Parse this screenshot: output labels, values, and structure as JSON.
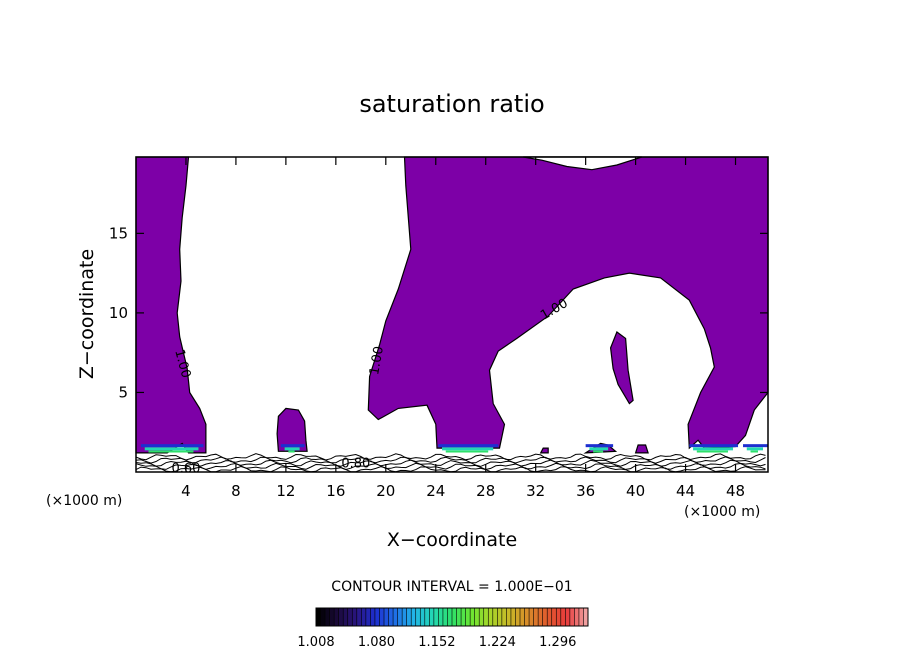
{
  "chart_data": {
    "type": "heatmap",
    "title": "saturation ratio",
    "xlabel": "X−coordinate",
    "ylabel": "Z−coordinate",
    "x_unit": "(×1000 m)",
    "z_unit": "(×1000 m)",
    "xlim": [
      0,
      50.6
    ],
    "ylim": [
      0,
      19.8
    ],
    "x_ticks": [
      4,
      8,
      12,
      16,
      20,
      24,
      28,
      32,
      36,
      40,
      44,
      48
    ],
    "y_ticks": [
      5,
      10,
      15
    ],
    "contour_interval": "CONTOUR INTERVAL = 1.000E−01",
    "contour_labels": [
      {
        "text": "1.00",
        "x": 3.7,
        "z": 6.8,
        "rot": 75
      },
      {
        "text": "1.00",
        "x": 19.3,
        "z": 7.0,
        "rot": -80
      },
      {
        "text": "1.00",
        "x": 33.5,
        "z": 10.2,
        "rot": -30
      },
      {
        "text": "0.60",
        "x": 4.0,
        "z": 0.2,
        "rot": 0
      },
      {
        "text": "0.80",
        "x": 17.6,
        "z": 0.5,
        "rot": 0
      }
    ],
    "colorbar": {
      "min": 1.008,
      "max": 1.332,
      "tick_labels": [
        "1.008",
        "1.080",
        "1.152",
        "1.224",
        "1.296"
      ],
      "colors": [
        "#000000",
        "#1a0a3a",
        "#2a1580",
        "#1d2fd0",
        "#1f6ee6",
        "#22b4e8",
        "#23d7b3",
        "#2ee06a",
        "#6be632",
        "#a8d62a",
        "#c9b828",
        "#d98a2a",
        "#e05a2e",
        "#e83b3b",
        "#f0a0a0"
      ]
    },
    "supersaturated_color": "#7d00a7",
    "cloud_regions": [
      [
        [
          0,
          19.8
        ],
        [
          4.2,
          19.8
        ],
        [
          4.0,
          18
        ],
        [
          3.7,
          16
        ],
        [
          3.5,
          14
        ],
        [
          3.6,
          12
        ],
        [
          3.3,
          10
        ],
        [
          3.5,
          8.5
        ],
        [
          4.1,
          6.5
        ],
        [
          4.3,
          5.0
        ],
        [
          5.1,
          4.0
        ],
        [
          5.6,
          3.0
        ],
        [
          5.6,
          1.2
        ],
        [
          4.2,
          1.2
        ],
        [
          3.7,
          1.8
        ],
        [
          2.5,
          1.2
        ],
        [
          0,
          1.2
        ]
      ],
      [
        [
          11.4,
          1.3
        ],
        [
          11.3,
          2.4
        ],
        [
          11.4,
          3.5
        ],
        [
          12.0,
          4.0
        ],
        [
          13.0,
          3.9
        ],
        [
          13.5,
          3.2
        ],
        [
          13.6,
          2.0
        ],
        [
          13.7,
          1.3
        ]
      ],
      [
        [
          21.5,
          19.8
        ],
        [
          41.5,
          19.8
        ],
        [
          50.6,
          19.8
        ],
        [
          50.6,
          5.0
        ],
        [
          49.5,
          3.9
        ],
        [
          48.8,
          2.3
        ],
        [
          48.0,
          1.6
        ],
        [
          45.5,
          1.5
        ],
        [
          45.0,
          2.0
        ],
        [
          44.3,
          1.5
        ],
        [
          44.2,
          3.0
        ],
        [
          45.2,
          5.0
        ],
        [
          46.3,
          6.6
        ],
        [
          46.0,
          7.8
        ],
        [
          45.5,
          9.0
        ],
        [
          44.3,
          10.8
        ],
        [
          42.0,
          12.2
        ],
        [
          39.5,
          12.5
        ],
        [
          37.5,
          12.2
        ],
        [
          35.0,
          11.5
        ],
        [
          33.0,
          9.8
        ],
        [
          30.5,
          8.4
        ],
        [
          29.0,
          7.6
        ],
        [
          28.3,
          6.4
        ],
        [
          28.6,
          4.3
        ],
        [
          29.5,
          3.0
        ],
        [
          29.1,
          1.5
        ],
        [
          24.1,
          1.5
        ],
        [
          24.0,
          3.0
        ],
        [
          23.3,
          4.2
        ],
        [
          21.0,
          4.0
        ],
        [
          19.4,
          3.3
        ],
        [
          18.6,
          3.9
        ],
        [
          18.7,
          6.0
        ],
        [
          19.5,
          8.0
        ],
        [
          20.0,
          9.5
        ],
        [
          21.0,
          11.5
        ],
        [
          22.0,
          14.0
        ],
        [
          21.8,
          16.0
        ],
        [
          21.6,
          18.0
        ]
      ],
      [
        [
          38.0,
          7.8
        ],
        [
          38.5,
          8.8
        ],
        [
          39.2,
          8.4
        ],
        [
          39.4,
          6.4
        ],
        [
          39.8,
          4.5
        ],
        [
          39.5,
          4.3
        ],
        [
          38.6,
          5.5
        ],
        [
          38.2,
          6.5
        ]
      ],
      [
        [
          36.0,
          1.2
        ],
        [
          36.6,
          1.5
        ],
        [
          37.2,
          1.8
        ],
        [
          37.8,
          1.7
        ],
        [
          38.4,
          1.3
        ]
      ],
      [
        [
          40.0,
          1.2
        ],
        [
          40.2,
          1.7
        ],
        [
          40.8,
          1.7
        ],
        [
          41.0,
          1.2
        ]
      ],
      [
        [
          32.4,
          1.2
        ],
        [
          32.6,
          1.5
        ],
        [
          33.0,
          1.5
        ],
        [
          33.0,
          1.2
        ]
      ]
    ],
    "dry_region_top": [
      [
        31.0,
        19.8
      ],
      [
        32.5,
        19.6
      ],
      [
        34.5,
        19.2
      ],
      [
        36.5,
        19.0
      ],
      [
        38.5,
        19.3
      ],
      [
        40.5,
        19.8
      ]
    ]
  }
}
